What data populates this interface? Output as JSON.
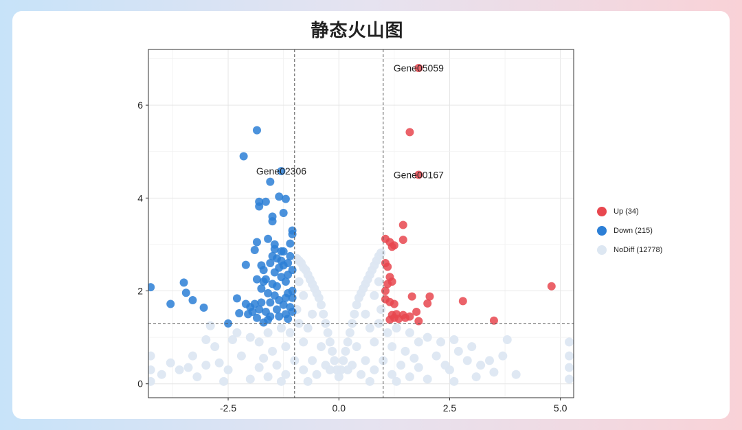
{
  "page": {
    "title": "静态火山图"
  },
  "chart_data": {
    "type": "scatter",
    "title": "静态火山图",
    "xlabel": "",
    "ylabel": "",
    "xlim": [
      -4.3,
      5.3
    ],
    "ylim": [
      -0.3,
      7.2
    ],
    "x_ticks": [
      -2.5,
      0.0,
      2.5,
      5.0
    ],
    "x_tick_labels": [
      "-2.5",
      "0.0",
      "2.5",
      "5.0"
    ],
    "y_ticks": [
      0,
      2,
      4,
      6
    ],
    "y_tick_labels": [
      "0",
      "2",
      "4",
      "6"
    ],
    "grid": true,
    "legend_position": "right",
    "thresholds": {
      "x": [
        -1,
        1
      ],
      "y": 1.3
    },
    "colors": {
      "up": "#e8474f",
      "down": "#2c7fd6",
      "nodiff": "#dde7f2"
    },
    "series": [
      {
        "name": "Up (34)",
        "color": "#e8474f",
        "points": [
          [
            1.8,
            6.8
          ],
          [
            1.6,
            5.42
          ],
          [
            1.8,
            4.5
          ],
          [
            1.45,
            3.42
          ],
          [
            1.05,
            3.12
          ],
          [
            1.15,
            3.05
          ],
          [
            1.2,
            2.95
          ],
          [
            1.25,
            2.98
          ],
          [
            1.45,
            3.1
          ],
          [
            1.05,
            2.6
          ],
          [
            1.1,
            2.52
          ],
          [
            1.15,
            2.3
          ],
          [
            1.1,
            2.15
          ],
          [
            1.2,
            2.2
          ],
          [
            1.05,
            2.0
          ],
          [
            1.05,
            1.82
          ],
          [
            1.15,
            1.76
          ],
          [
            1.25,
            1.72
          ],
          [
            1.65,
            1.88
          ],
          [
            2.05,
            1.88
          ],
          [
            2.0,
            1.73
          ],
          [
            1.75,
            1.55
          ],
          [
            1.2,
            1.48
          ],
          [
            1.25,
            1.42
          ],
          [
            1.45,
            1.48
          ],
          [
            1.5,
            1.42
          ],
          [
            1.15,
            1.38
          ],
          [
            1.8,
            1.35
          ],
          [
            1.35,
            1.4
          ],
          [
            2.8,
            1.78
          ],
          [
            3.5,
            1.36
          ],
          [
            4.8,
            2.1
          ],
          [
            1.3,
            1.5
          ],
          [
            1.6,
            1.45
          ]
        ]
      },
      {
        "name": "Down (215)",
        "color": "#2c7fd6",
        "points": [
          [
            -1.85,
            5.46
          ],
          [
            -2.15,
            4.9
          ],
          [
            -1.3,
            4.58
          ],
          [
            -1.55,
            4.35
          ],
          [
            -1.35,
            4.03
          ],
          [
            -1.2,
            3.98
          ],
          [
            -1.8,
            3.92
          ],
          [
            -1.65,
            3.92
          ],
          [
            -1.8,
            3.82
          ],
          [
            -1.5,
            3.6
          ],
          [
            -1.25,
            3.68
          ],
          [
            -1.5,
            3.5
          ],
          [
            -1.05,
            3.3
          ],
          [
            -1.05,
            3.22
          ],
          [
            -1.85,
            3.05
          ],
          [
            -1.6,
            3.12
          ],
          [
            -1.45,
            3.0
          ],
          [
            -1.9,
            2.88
          ],
          [
            -2.1,
            2.56
          ],
          [
            -3.5,
            2.18
          ],
          [
            -4.25,
            2.08
          ],
          [
            -3.45,
            1.96
          ],
          [
            -3.3,
            1.8
          ],
          [
            -3.05,
            1.64
          ],
          [
            -3.8,
            1.72
          ],
          [
            -2.3,
            1.84
          ],
          [
            -2.1,
            1.72
          ],
          [
            -2.0,
            1.65
          ],
          [
            -2.25,
            1.52
          ],
          [
            -2.05,
            1.5
          ],
          [
            -2.5,
            1.3
          ],
          [
            -1.85,
            1.42
          ],
          [
            -1.9,
            1.72
          ],
          [
            -1.75,
            1.75
          ],
          [
            -1.7,
            1.32
          ],
          [
            -1.6,
            1.38
          ],
          [
            -1.75,
            2.05
          ],
          [
            -1.7,
            2.45
          ],
          [
            -1.65,
            2.25
          ],
          [
            -1.55,
            2.6
          ],
          [
            -1.5,
            2.75
          ],
          [
            -1.45,
            2.4
          ],
          [
            -1.4,
            2.1
          ],
          [
            -1.35,
            1.8
          ],
          [
            -1.3,
            2.85
          ],
          [
            -1.25,
            2.55
          ],
          [
            -1.2,
            2.2
          ],
          [
            -1.15,
            1.95
          ],
          [
            -1.1,
            1.65
          ],
          [
            -1.05,
            2.45
          ],
          [
            -1.05,
            2.0
          ],
          [
            -1.05,
            1.55
          ],
          [
            -1.1,
            2.75
          ],
          [
            -1.15,
            2.6
          ],
          [
            -1.2,
            1.5
          ],
          [
            -1.25,
            1.7
          ],
          [
            -1.3,
            2.3
          ],
          [
            -1.35,
            2.5
          ],
          [
            -1.4,
            1.6
          ],
          [
            -1.45,
            1.9
          ],
          [
            -1.5,
            2.15
          ],
          [
            -1.55,
            1.75
          ],
          [
            -1.6,
            1.95
          ],
          [
            -1.65,
            1.55
          ],
          [
            -1.7,
            2.2
          ],
          [
            -1.8,
            1.6
          ],
          [
            -1.85,
            2.25
          ],
          [
            -1.95,
            1.55
          ],
          [
            -1.55,
            1.45
          ],
          [
            -1.35,
            1.45
          ],
          [
            -1.15,
            1.4
          ],
          [
            -1.25,
            2.85
          ],
          [
            -1.1,
            3.02
          ],
          [
            -1.45,
            2.9
          ],
          [
            -1.75,
            2.55
          ],
          [
            -1.3,
            2.65
          ],
          [
            -1.15,
            2.35
          ],
          [
            -1.2,
            1.85
          ],
          [
            -1.4,
            2.7
          ],
          [
            -1.05,
            1.85
          ]
        ]
      },
      {
        "name": "NoDiff (12778)",
        "color": "#dde7f2",
        "points": [
          [
            0.0,
            0.15
          ],
          [
            -0.05,
            0.3
          ],
          [
            0.05,
            0.3
          ],
          [
            -0.1,
            0.5
          ],
          [
            0.1,
            0.5
          ],
          [
            -0.15,
            0.7
          ],
          [
            0.15,
            0.7
          ],
          [
            -0.2,
            0.9
          ],
          [
            0.2,
            0.9
          ],
          [
            -0.25,
            1.1
          ],
          [
            0.25,
            1.1
          ],
          [
            -0.3,
            1.3
          ],
          [
            0.3,
            1.3
          ],
          [
            -0.35,
            1.5
          ],
          [
            0.35,
            1.5
          ],
          [
            -0.4,
            1.7
          ],
          [
            0.4,
            1.7
          ],
          [
            -0.45,
            1.85
          ],
          [
            0.45,
            1.85
          ],
          [
            -0.5,
            1.95
          ],
          [
            0.5,
            1.95
          ],
          [
            -0.55,
            2.05
          ],
          [
            0.55,
            2.05
          ],
          [
            -0.6,
            2.15
          ],
          [
            0.6,
            2.15
          ],
          [
            -0.65,
            2.25
          ],
          [
            0.65,
            2.25
          ],
          [
            -0.7,
            2.35
          ],
          [
            0.7,
            2.35
          ],
          [
            -0.75,
            2.45
          ],
          [
            0.75,
            2.45
          ],
          [
            -0.8,
            2.5
          ],
          [
            0.8,
            2.55
          ],
          [
            -0.85,
            2.6
          ],
          [
            0.85,
            2.65
          ],
          [
            -0.9,
            2.65
          ],
          [
            0.9,
            2.75
          ],
          [
            -0.95,
            2.7
          ],
          [
            0.95,
            2.82
          ],
          [
            -0.6,
            1.5
          ],
          [
            0.6,
            1.5
          ],
          [
            -0.8,
            1.9
          ],
          [
            0.8,
            1.9
          ],
          [
            -0.9,
            2.2
          ],
          [
            0.9,
            2.2
          ],
          [
            -0.7,
            1.2
          ],
          [
            0.7,
            1.2
          ],
          [
            -0.95,
            1.6
          ],
          [
            0.95,
            1.6
          ],
          [
            -0.4,
            0.8
          ],
          [
            0.4,
            0.8
          ],
          [
            -0.2,
            0.3
          ],
          [
            0.2,
            0.3
          ],
          [
            -0.6,
            0.5
          ],
          [
            0.6,
            0.5
          ],
          [
            -0.8,
            0.9
          ],
          [
            0.8,
            0.9
          ],
          [
            -0.9,
            1.3
          ],
          [
            0.9,
            1.3
          ],
          [
            -0.3,
            0.4
          ],
          [
            0.3,
            0.4
          ],
          [
            -0.5,
            0.2
          ],
          [
            0.5,
            0.2
          ],
          [
            -0.8,
            0.3
          ],
          [
            0.8,
            0.3
          ],
          [
            -1.0,
            0.5
          ],
          [
            1.0,
            0.5
          ],
          [
            -1.2,
            0.2
          ],
          [
            1.2,
            0.2
          ],
          [
            -1.4,
            0.4
          ],
          [
            1.4,
            0.4
          ],
          [
            -1.6,
            0.15
          ],
          [
            1.6,
            0.15
          ],
          [
            -1.8,
            0.35
          ],
          [
            1.8,
            0.35
          ],
          [
            -2.0,
            0.1
          ],
          [
            2.0,
            0.1
          ],
          [
            -1.2,
            0.8
          ],
          [
            1.2,
            0.8
          ],
          [
            -1.5,
            0.7
          ],
          [
            1.5,
            0.7
          ],
          [
            -1.8,
            0.9
          ],
          [
            1.8,
            0.9
          ],
          [
            -2.2,
            0.6
          ],
          [
            2.2,
            0.6
          ],
          [
            -2.5,
            0.3
          ],
          [
            2.5,
            0.3
          ],
          [
            -1.1,
            1.1
          ],
          [
            1.1,
            1.1
          ],
          [
            -1.3,
            1.2
          ],
          [
            1.3,
            1.2
          ],
          [
            -1.6,
            1.1
          ],
          [
            1.6,
            1.1
          ],
          [
            -2.0,
            1.0
          ],
          [
            2.0,
            1.0
          ],
          [
            -2.3,
            1.1
          ],
          [
            2.3,
            0.9
          ],
          [
            -2.8,
            0.8
          ],
          [
            2.7,
            0.7
          ],
          [
            -3.0,
            0.4
          ],
          [
            2.9,
            0.5
          ],
          [
            -3.3,
            0.6
          ],
          [
            3.2,
            0.4
          ],
          [
            -3.6,
            0.3
          ],
          [
            3.5,
            0.25
          ],
          [
            -3.0,
            0.95
          ],
          [
            2.6,
            0.95
          ],
          [
            -2.7,
            0.45
          ],
          [
            3.0,
            0.8
          ],
          [
            -3.4,
            0.35
          ],
          [
            3.4,
            0.5
          ],
          [
            -3.8,
            0.45
          ],
          [
            3.7,
            0.6
          ],
          [
            4.0,
            0.2
          ],
          [
            -4.0,
            0.2
          ],
          [
            -4.25,
            0.6
          ],
          [
            -4.25,
            0.3
          ],
          [
            -4.25,
            0.05
          ],
          [
            5.2,
            0.9
          ],
          [
            5.2,
            0.6
          ],
          [
            5.2,
            0.35
          ],
          [
            5.2,
            0.1
          ],
          [
            3.8,
            0.95
          ],
          [
            -2.9,
            1.25
          ],
          [
            -2.4,
            0.95
          ],
          [
            2.4,
            0.4
          ],
          [
            -1.7,
            0.55
          ],
          [
            1.7,
            0.55
          ],
          [
            -1.3,
            0.05
          ],
          [
            1.3,
            0.05
          ],
          [
            -0.7,
            0.05
          ],
          [
            0.7,
            0.05
          ],
          [
            -2.6,
            0.05
          ],
          [
            2.6,
            0.05
          ],
          [
            -3.2,
            0.15
          ],
          [
            3.1,
            0.15
          ]
        ]
      }
    ],
    "annotations": [
      {
        "text": "Gene05059",
        "x": 1.8,
        "y": 6.8
      },
      {
        "text": "Gene00167",
        "x": 1.8,
        "y": 4.5
      },
      {
        "text": "Gene02306",
        "x": -1.3,
        "y": 4.58
      }
    ]
  }
}
